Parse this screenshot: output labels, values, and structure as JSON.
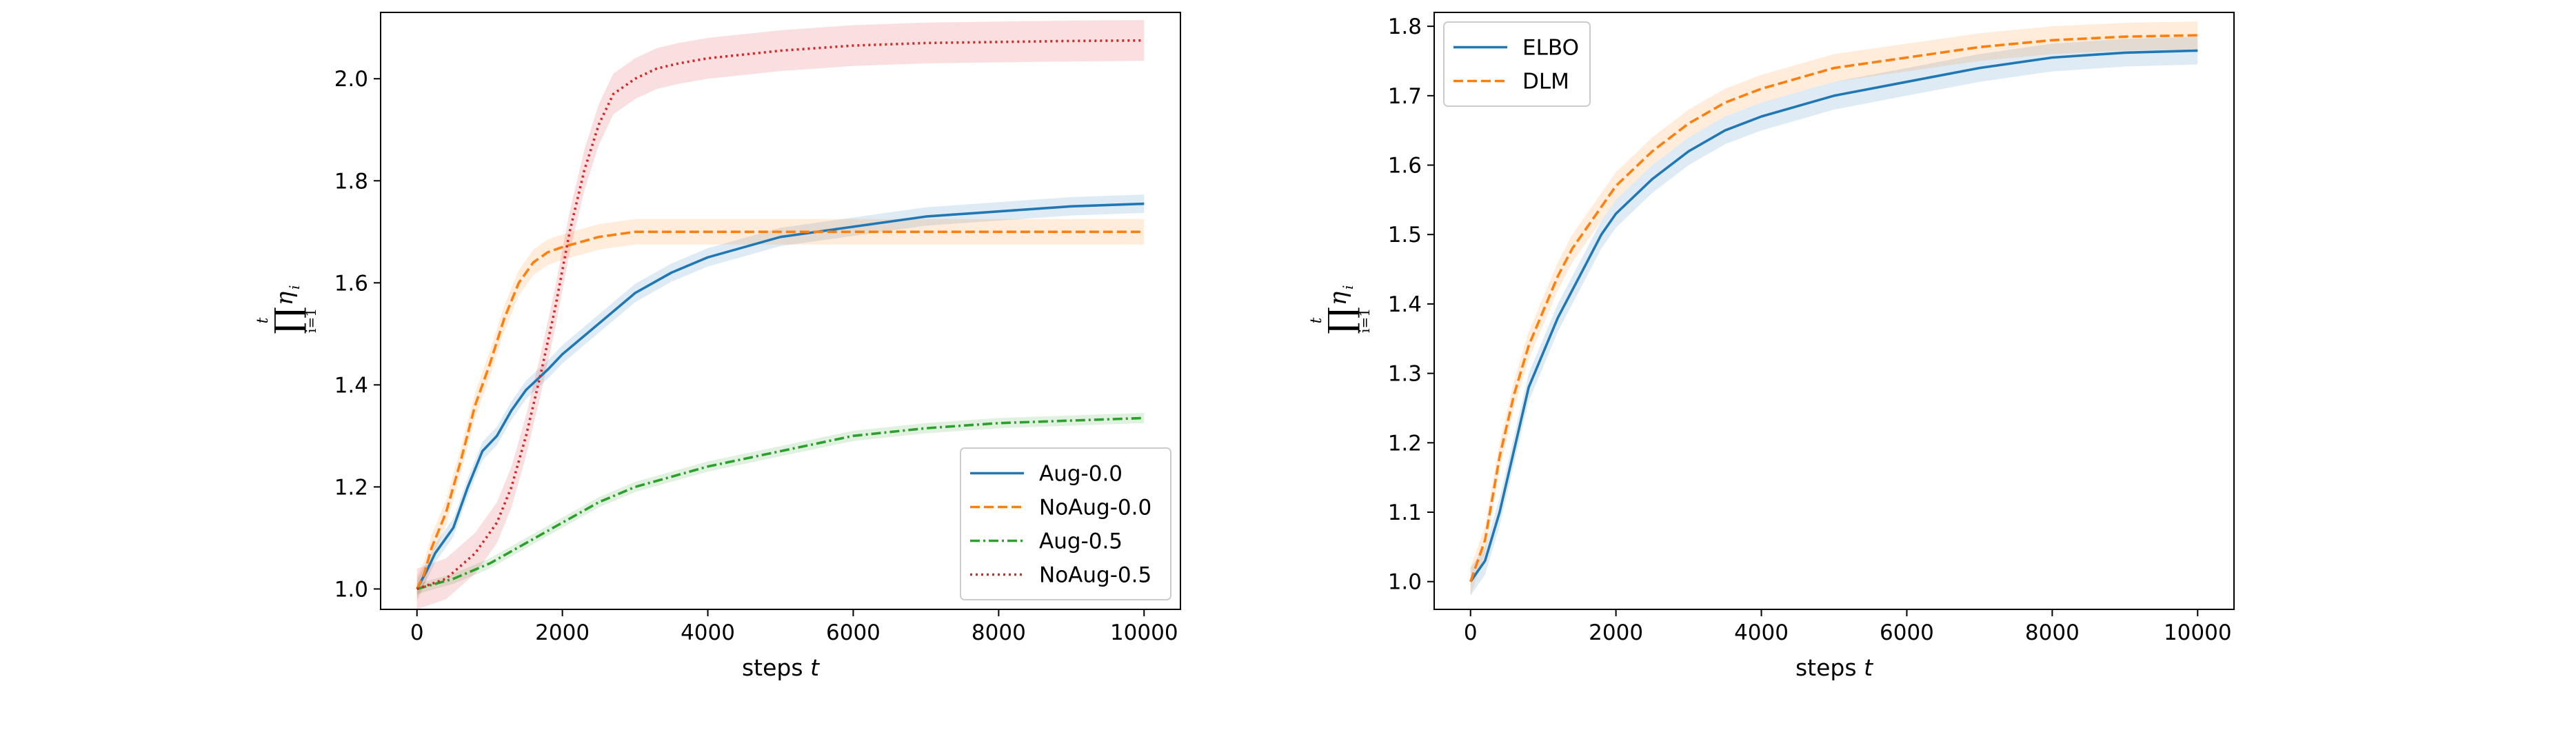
{
  "chart_data": [
    {
      "type": "line",
      "xlabel": "steps",
      "xlabel_var": "t",
      "ylabel": "∏ηᵢ (i=1..t)",
      "ylabel_symbol": "∏",
      "ylabel_top": "t",
      "ylabel_bottom": "i=1",
      "ylabel_var": "η",
      "ylabel_sub": "i",
      "xlim": [
        -500,
        10500
      ],
      "ylim": [
        0.96,
        2.13
      ],
      "xticks": [
        0,
        2000,
        4000,
        6000,
        8000,
        10000
      ],
      "yticks": [
        1.0,
        1.2,
        1.4,
        1.6,
        1.8,
        2.0
      ],
      "ytick_labels": [
        "1.0",
        "1.2",
        "1.4",
        "1.6",
        "1.8",
        "2.0"
      ],
      "legend_position": "lower right",
      "series": [
        {
          "name": "Aug-0.0",
          "color": "#1f77b4",
          "dash": "solid",
          "band": 0.018,
          "x": [
            0,
            150,
            250,
            500,
            700,
            900,
            1100,
            1300,
            1500,
            1800,
            2000,
            2500,
            3000,
            3500,
            4000,
            5000,
            6000,
            7000,
            8000,
            9000,
            10000
          ],
          "y": [
            1.0,
            1.04,
            1.07,
            1.12,
            1.2,
            1.27,
            1.3,
            1.35,
            1.39,
            1.43,
            1.46,
            1.52,
            1.58,
            1.62,
            1.65,
            1.69,
            1.71,
            1.73,
            1.74,
            1.75,
            1.755
          ]
        },
        {
          "name": "NoAug-0.0",
          "color": "#ff7f0e",
          "dash": "dashed",
          "band": 0.025,
          "x": [
            0,
            100,
            200,
            400,
            600,
            800,
            1000,
            1200,
            1400,
            1600,
            1800,
            2000,
            2500,
            3000,
            4000,
            5000,
            6000,
            7000,
            8000,
            9000,
            10000
          ],
          "y": [
            1.0,
            1.03,
            1.08,
            1.15,
            1.25,
            1.36,
            1.44,
            1.53,
            1.6,
            1.64,
            1.66,
            1.67,
            1.69,
            1.7,
            1.7,
            1.7,
            1.7,
            1.7,
            1.7,
            1.7,
            1.7
          ]
        },
        {
          "name": "Aug-0.5",
          "color": "#2ca02c",
          "dash": "dashdot",
          "band": 0.01,
          "x": [
            0,
            500,
            1000,
            1500,
            2000,
            2500,
            3000,
            3500,
            4000,
            5000,
            6000,
            7000,
            8000,
            9000,
            10000
          ],
          "y": [
            1.0,
            1.02,
            1.05,
            1.09,
            1.13,
            1.17,
            1.2,
            1.22,
            1.24,
            1.27,
            1.3,
            1.315,
            1.325,
            1.33,
            1.335
          ]
        },
        {
          "name": "NoAug-0.5",
          "color": "#d62728",
          "dash": "dotted",
          "band": 0.04,
          "x": [
            0,
            400,
            800,
            1100,
            1300,
            1500,
            1700,
            1900,
            2100,
            2300,
            2500,
            2700,
            3000,
            3300,
            3600,
            4000,
            5000,
            6000,
            7000,
            8000,
            9000,
            10000
          ],
          "y": [
            1.0,
            1.02,
            1.07,
            1.13,
            1.2,
            1.3,
            1.42,
            1.55,
            1.7,
            1.82,
            1.91,
            1.97,
            2.0,
            2.02,
            2.03,
            2.04,
            2.055,
            2.065,
            2.07,
            2.072,
            2.074,
            2.075
          ]
        }
      ]
    },
    {
      "type": "line",
      "xlabel": "steps",
      "xlabel_var": "t",
      "ylabel": "∏ηᵢ (i=1..t)",
      "ylabel_symbol": "∏",
      "ylabel_top": "t",
      "ylabel_bottom": "i=1",
      "ylabel_var": "η",
      "ylabel_sub": "i",
      "xlim": [
        -500,
        10500
      ],
      "ylim": [
        0.96,
        1.82
      ],
      "xticks": [
        0,
        2000,
        4000,
        6000,
        8000,
        10000
      ],
      "yticks": [
        1.0,
        1.1,
        1.2,
        1.3,
        1.4,
        1.5,
        1.6,
        1.7,
        1.8
      ],
      "ytick_labels": [
        "1.0",
        "1.1",
        "1.2",
        "1.3",
        "1.4",
        "1.5",
        "1.6",
        "1.7",
        "1.8"
      ],
      "legend_position": "upper left",
      "series": [
        {
          "name": "ELBO",
          "color": "#1f77b4",
          "dash": "solid",
          "band": 0.02,
          "x": [
            0,
            200,
            400,
            600,
            800,
            1000,
            1200,
            1400,
            1600,
            1800,
            2000,
            2500,
            3000,
            3500,
            4000,
            5000,
            6000,
            7000,
            8000,
            9000,
            10000
          ],
          "y": [
            1.0,
            1.03,
            1.1,
            1.19,
            1.28,
            1.33,
            1.38,
            1.42,
            1.46,
            1.5,
            1.53,
            1.58,
            1.62,
            1.65,
            1.67,
            1.7,
            1.72,
            1.74,
            1.755,
            1.762,
            1.765
          ]
        },
        {
          "name": "DLM",
          "color": "#ff7f0e",
          "dash": "dashed",
          "band": 0.02,
          "x": [
            0,
            200,
            400,
            600,
            800,
            1000,
            1200,
            1400,
            1600,
            1800,
            2000,
            2500,
            3000,
            3500,
            4000,
            5000,
            6000,
            7000,
            8000,
            9000,
            10000
          ],
          "y": [
            1.0,
            1.06,
            1.18,
            1.27,
            1.34,
            1.39,
            1.44,
            1.48,
            1.51,
            1.54,
            1.57,
            1.62,
            1.66,
            1.69,
            1.71,
            1.74,
            1.755,
            1.77,
            1.78,
            1.785,
            1.787
          ]
        }
      ]
    }
  ]
}
